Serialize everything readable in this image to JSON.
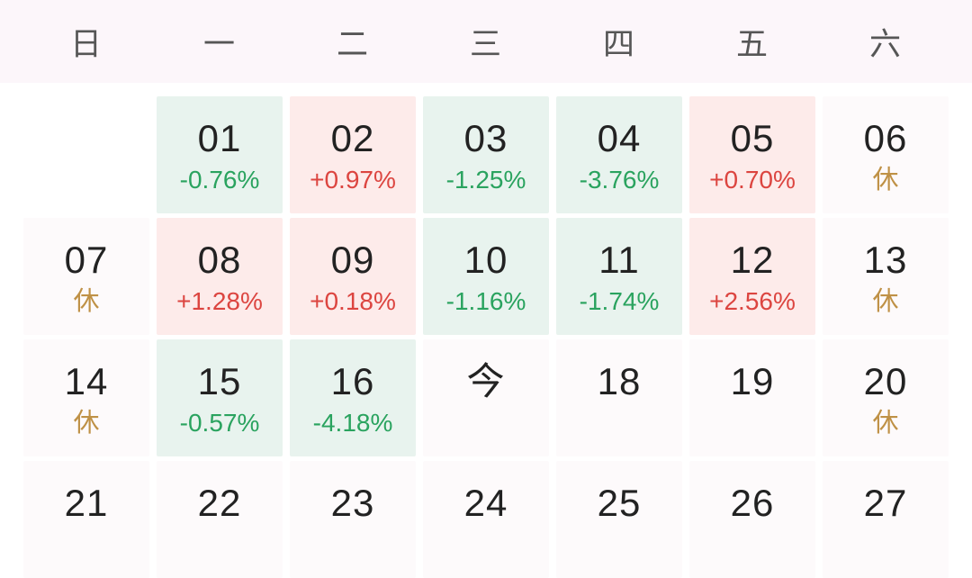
{
  "header": {
    "weekdays": [
      "日",
      "一",
      "二",
      "三",
      "四",
      "五",
      "六"
    ]
  },
  "labels": {
    "holiday": "休",
    "today": "今"
  },
  "colors": {
    "header_bg": "#fcf6fa",
    "cell_neutral_bg": "#fdfafb",
    "cell_down_bg": "#e8f3ee",
    "cell_up_bg": "#fdebea",
    "text_day": "#222222",
    "text_down_green": "#2aa35f",
    "text_up_red": "#dc4540",
    "text_holiday_gold": "#bf9146",
    "text_weekday": "#565656"
  },
  "weeks": [
    [
      {
        "day": "",
        "sub": "",
        "type": "empty"
      },
      {
        "day": "01",
        "sub": "-0.76%",
        "type": "down"
      },
      {
        "day": "02",
        "sub": "+0.97%",
        "type": "up"
      },
      {
        "day": "03",
        "sub": "-1.25%",
        "type": "down"
      },
      {
        "day": "04",
        "sub": "-3.76%",
        "type": "down"
      },
      {
        "day": "05",
        "sub": "+0.70%",
        "type": "up"
      },
      {
        "day": "06",
        "sub": "休",
        "type": "rest"
      }
    ],
    [
      {
        "day": "07",
        "sub": "休",
        "type": "rest"
      },
      {
        "day": "08",
        "sub": "+1.28%",
        "type": "up"
      },
      {
        "day": "09",
        "sub": "+0.18%",
        "type": "up"
      },
      {
        "day": "10",
        "sub": "-1.16%",
        "type": "down"
      },
      {
        "day": "11",
        "sub": "-1.74%",
        "type": "down"
      },
      {
        "day": "12",
        "sub": "+2.56%",
        "type": "up"
      },
      {
        "day": "13",
        "sub": "休",
        "type": "rest"
      }
    ],
    [
      {
        "day": "14",
        "sub": "休",
        "type": "rest"
      },
      {
        "day": "15",
        "sub": "-0.57%",
        "type": "down"
      },
      {
        "day": "16",
        "sub": "-4.18%",
        "type": "down"
      },
      {
        "day": "今",
        "sub": "",
        "type": "today"
      },
      {
        "day": "18",
        "sub": "",
        "type": "plain"
      },
      {
        "day": "19",
        "sub": "",
        "type": "plain"
      },
      {
        "day": "20",
        "sub": "休",
        "type": "rest"
      }
    ],
    [
      {
        "day": "21",
        "sub": "",
        "type": "plain"
      },
      {
        "day": "22",
        "sub": "",
        "type": "plain"
      },
      {
        "day": "23",
        "sub": "",
        "type": "plain"
      },
      {
        "day": "24",
        "sub": "",
        "type": "plain"
      },
      {
        "day": "25",
        "sub": "",
        "type": "plain"
      },
      {
        "day": "26",
        "sub": "",
        "type": "plain"
      },
      {
        "day": "27",
        "sub": "",
        "type": "plain"
      }
    ]
  ]
}
